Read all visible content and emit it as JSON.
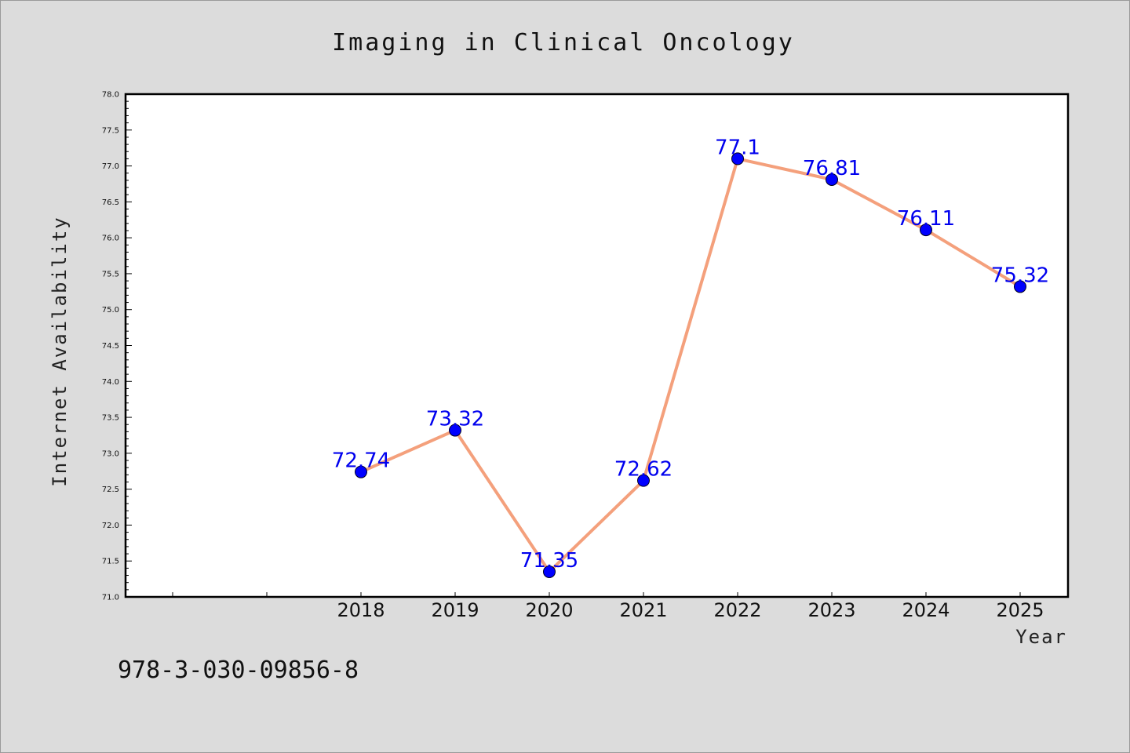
{
  "chart_data": {
    "type": "line",
    "title": "Imaging in Clinical Oncology",
    "xlabel": "Year",
    "ylabel": "Internet Availability",
    "categories": [
      "2018",
      "2019",
      "2020",
      "2021",
      "2022",
      "2023",
      "2024",
      "2025"
    ],
    "series": [
      {
        "values": [
          72.74,
          73.32,
          71.35,
          72.62,
          77.1,
          76.81,
          76.11,
          75.32
        ],
        "labels": [
          "72.74",
          "73.32",
          "71.35",
          "72.62",
          "77.1",
          "76.81",
          "76.11",
          "75.32"
        ]
      }
    ],
    "ylim": [
      71.0,
      78.0
    ],
    "yticks": [
      "71.0",
      "71.5",
      "72.0",
      "72.5",
      "73.0",
      "73.5",
      "74.0",
      "74.5",
      "75.0",
      "75.5",
      "76.0",
      "76.5",
      "77.0",
      "77.5",
      "78.0"
    ],
    "grid": false,
    "line_color": "#f4a07c",
    "marker_color": "#0000ff",
    "label_color": "#0000ee"
  },
  "footer": {
    "isbn": "978-3-030-09856-8"
  }
}
